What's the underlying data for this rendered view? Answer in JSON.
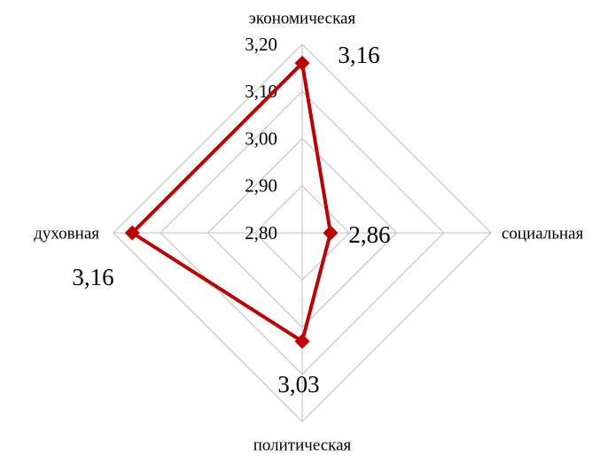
{
  "chart_data": {
    "type": "radar",
    "categories": [
      "экономическая",
      "социальная",
      "политическая",
      "духовная"
    ],
    "values": [
      3.16,
      2.86,
      3.03,
      3.16
    ],
    "value_labels": [
      "3,16",
      "2,86",
      "3,03",
      "3,16"
    ],
    "color": "#c00000",
    "rlim": [
      2.8,
      3.2
    ],
    "rticks": [
      {
        "value": 2.8,
        "label": "2,80"
      },
      {
        "value": 2.9,
        "label": "2,90"
      },
      {
        "value": 3.0,
        "label": "3,00"
      },
      {
        "value": 3.1,
        "label": "3,10"
      },
      {
        "value": 3.2,
        "label": "3,20"
      }
    ],
    "grid": true
  }
}
